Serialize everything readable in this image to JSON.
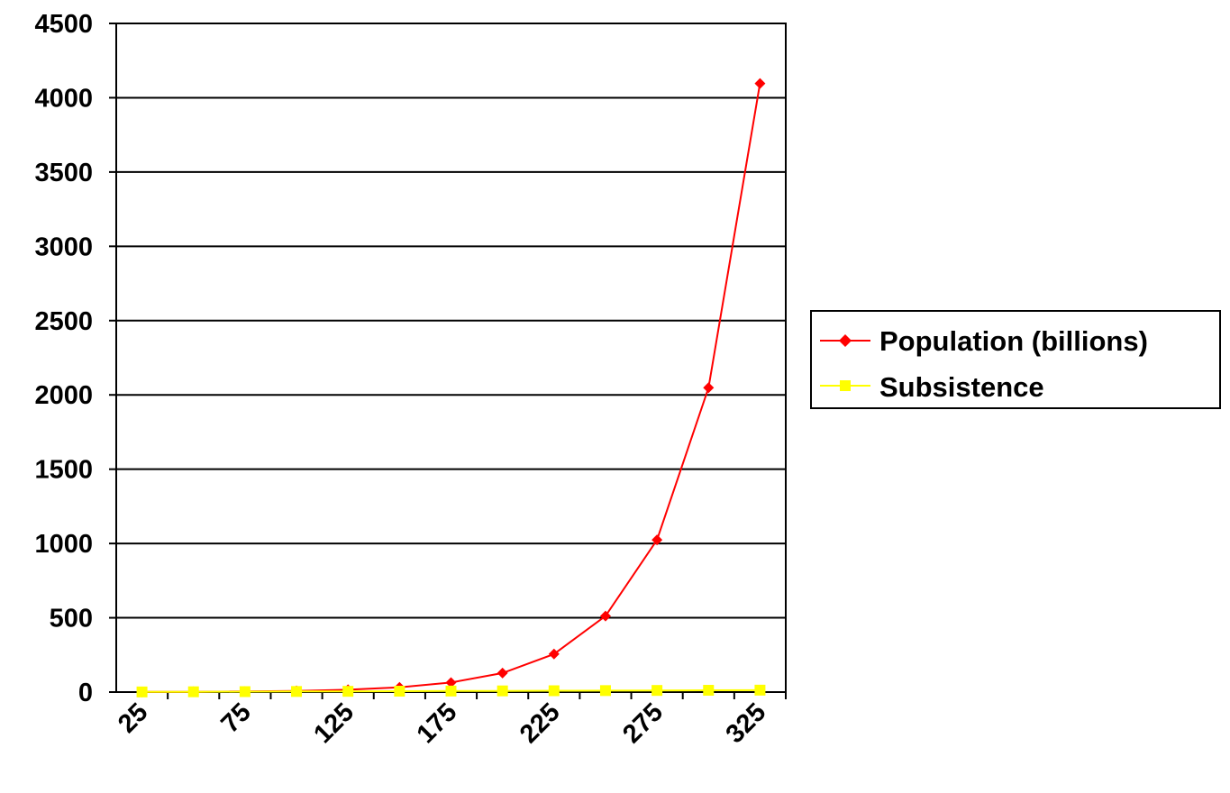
{
  "chart_data": {
    "type": "line",
    "title": "",
    "xlabel": "",
    "ylabel": "",
    "x": [
      25,
      50,
      75,
      100,
      125,
      150,
      175,
      200,
      225,
      250,
      275,
      300,
      325
    ],
    "x_tick_labels": [
      "25",
      "75",
      "125",
      "175",
      "225",
      "275",
      "325"
    ],
    "y_tick_labels": [
      "0",
      "500",
      "1000",
      "1500",
      "2000",
      "2500",
      "3000",
      "3500",
      "4000",
      "4500"
    ],
    "ylim": [
      0,
      4500
    ],
    "grid": "horizontal",
    "legend_position": "right",
    "series": [
      {
        "name": "Population (billions)",
        "color": "#ff0000",
        "marker": "diamond",
        "values": [
          1,
          2,
          4,
          8,
          16,
          32,
          64,
          128,
          256,
          512,
          1024,
          2048,
          4096
        ]
      },
      {
        "name": "Subsistence",
        "color": "#ffff00",
        "marker": "square",
        "values": [
          1,
          2,
          3,
          4,
          5,
          6,
          7,
          8,
          9,
          10,
          11,
          12,
          13
        ]
      }
    ]
  }
}
